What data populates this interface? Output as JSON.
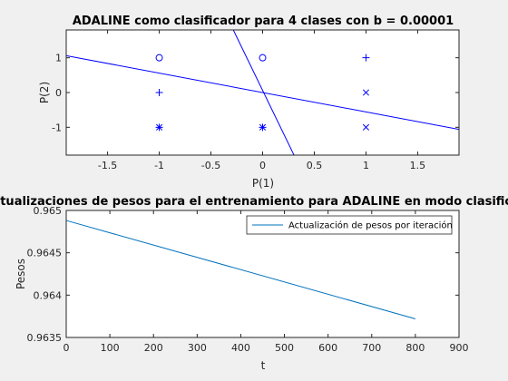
{
  "chart_data": [
    {
      "type": "scatter",
      "title": "ADALINE como clasificador para 4 clases con b = 0.00001",
      "xlabel": "P(1)",
      "ylabel": "P(2)",
      "xlim": [
        -1.9,
        1.9
      ],
      "ylim": [
        -1.8,
        1.8
      ],
      "xticks": [
        -1.5,
        -1,
        -0.5,
        0,
        0.5,
        1,
        1.5
      ],
      "xtick_labels": [
        "-1.5",
        "-1",
        "-0.5",
        "0",
        "0.5",
        "1",
        "1.5"
      ],
      "yticks": [
        -1,
        0,
        1
      ],
      "ytick_labels": [
        "-1",
        "0",
        "1"
      ],
      "grid": false,
      "color": "#0000ff",
      "points": [
        {
          "x": -1,
          "y": 1,
          "marker": "o"
        },
        {
          "x": 0,
          "y": 1,
          "marker": "o"
        },
        {
          "x": 1,
          "y": 1,
          "marker": "+"
        },
        {
          "x": -1,
          "y": 0,
          "marker": "+"
        },
        {
          "x": 1,
          "y": 0,
          "marker": "x"
        },
        {
          "x": -1,
          "y": -1,
          "marker": "*"
        },
        {
          "x": 0,
          "y": -1,
          "marker": "*"
        },
        {
          "x": 1,
          "y": -1,
          "marker": "x"
        }
      ],
      "lines": [
        {
          "x": [
            -1.9,
            1.9
          ],
          "y": [
            1.06,
            -1.06
          ]
        },
        {
          "x": [
            -0.3,
            0.32
          ],
          "y": [
            1.9,
            -1.9
          ]
        }
      ]
    },
    {
      "type": "line",
      "title": "Actualizaciones de pesos para el entrenamiento para ADALINE en modo clasificador",
      "xlabel": "t",
      "ylabel": "Pesos",
      "xlim": [
        0,
        900
      ],
      "ylim": [
        0.9635,
        0.965
      ],
      "xticks": [
        0,
        100,
        200,
        300,
        400,
        500,
        600,
        700,
        800,
        900
      ],
      "xtick_labels": [
        "0",
        "100",
        "200",
        "300",
        "400",
        "500",
        "600",
        "700",
        "800",
        "900"
      ],
      "yticks": [
        0.9635,
        0.964,
        0.9645,
        0.965
      ],
      "ytick_labels": [
        "0.9635",
        "0.964",
        "0.9645",
        "0.965"
      ],
      "grid": false,
      "legend": "top-right",
      "color": "#0072bd",
      "series": [
        {
          "name": "Actualización de pesos por iteración",
          "x": [
            1,
            800
          ],
          "y": [
            0.96488,
            0.96372
          ]
        }
      ]
    }
  ]
}
